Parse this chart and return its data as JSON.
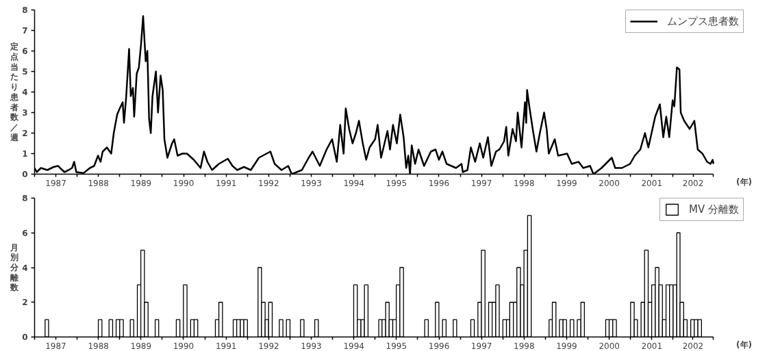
{
  "chart_data": [
    {
      "type": "line",
      "ylabel": "定点当たり患者数／週",
      "xlabel": "(年)",
      "xlim": [
        1987,
        2002.95
      ],
      "ylim": [
        0,
        8
      ],
      "yticks": [
        0,
        1,
        2,
        3,
        4,
        5,
        6,
        7,
        8
      ],
      "xticks": [
        {
          "value": 1987,
          "label": null
        },
        {
          "value": 1987.5,
          "label": "1987"
        },
        {
          "value": 1988,
          "label": null
        },
        {
          "value": 1988.5,
          "label": "1988"
        },
        {
          "value": 1989,
          "label": null
        },
        {
          "value": 1989.5,
          "label": "1989"
        },
        {
          "value": 1990,
          "label": null
        },
        {
          "value": 1990.5,
          "label": "1990"
        },
        {
          "value": 1991,
          "label": null
        },
        {
          "value": 1991.5,
          "label": "1991"
        },
        {
          "value": 1992,
          "label": null
        },
        {
          "value": 1992.5,
          "label": "1992"
        },
        {
          "value": 1993,
          "label": null
        },
        {
          "value": 1993.5,
          "label": "1993"
        },
        {
          "value": 1994,
          "label": null
        },
        {
          "value": 1994.5,
          "label": "1994"
        },
        {
          "value": 1995,
          "label": null
        },
        {
          "value": 1995.5,
          "label": "1995"
        },
        {
          "value": 1996,
          "label": null
        },
        {
          "value": 1996.5,
          "label": "1996"
        },
        {
          "value": 1997,
          "label": null
        },
        {
          "value": 1997.5,
          "label": "1997"
        },
        {
          "value": 1998,
          "label": null
        },
        {
          "value": 1998.5,
          "label": "1998"
        },
        {
          "value": 1999,
          "label": null
        },
        {
          "value": 1999.5,
          "label": "1999"
        },
        {
          "value": 2000,
          "label": null
        },
        {
          "value": 2000.5,
          "label": "2000"
        },
        {
          "value": 2001,
          "label": null
        },
        {
          "value": 2001.5,
          "label": "2001"
        },
        {
          "value": 2002,
          "label": null
        },
        {
          "value": 2002.47,
          "label": "2002"
        },
        {
          "value": 2002.95,
          "label": null
        }
      ],
      "grid": false,
      "legend": "top right",
      "marker": "none",
      "line_style": "solid",
      "series": [
        {
          "name": "ムンプス患者数",
          "color": "#000000",
          "x": [
            1987.0,
            1987.05,
            1987.15,
            1987.3,
            1987.45,
            1987.55,
            1987.7,
            1987.8,
            1987.88,
            1987.93,
            1987.98,
            1988.15,
            1988.3,
            1988.4,
            1988.49,
            1988.55,
            1988.6,
            1988.7,
            1988.8,
            1988.86,
            1988.94,
            1989.0,
            1989.07,
            1989.1,
            1989.15,
            1989.22,
            1989.26,
            1989.31,
            1989.34,
            1989.4,
            1989.45,
            1989.5,
            1989.55,
            1989.61,
            1989.65,
            1989.69,
            1989.73,
            1989.77,
            1989.85,
            1989.9,
            1989.96,
            1990.01,
            1990.05,
            1990.12,
            1990.23,
            1990.28,
            1990.36,
            1990.47,
            1990.58,
            1990.74,
            1990.9,
            1990.98,
            1991.06,
            1991.17,
            1991.33,
            1991.54,
            1991.65,
            1991.76,
            1991.92,
            1992.08,
            1992.27,
            1992.54,
            1992.64,
            1992.8,
            1992.96,
            1993.04,
            1993.28,
            1993.44,
            1993.53,
            1993.7,
            1993.86,
            1993.99,
            1994.1,
            1994.18,
            1994.26,
            1994.31,
            1994.39,
            1994.47,
            1994.55,
            1994.62,
            1994.71,
            1994.79,
            1994.87,
            1995.0,
            1995.06,
            1995.14,
            1995.29,
            1995.35,
            1995.42,
            1995.51,
            1995.59,
            1995.67,
            1995.73,
            1995.78,
            1995.82,
            1995.86,
            1995.94,
            1996.02,
            1996.15,
            1996.31,
            1996.42,
            1996.5,
            1996.58,
            1996.68,
            1996.9,
            1997.03,
            1997.06,
            1997.17,
            1997.25,
            1997.35,
            1997.46,
            1997.54,
            1997.65,
            1997.73,
            1997.84,
            1997.92,
            1998.03,
            1998.08,
            1998.13,
            1998.23,
            1998.31,
            1998.35,
            1998.44,
            1998.52,
            1998.55,
            1998.57,
            1998.63,
            1998.71,
            1998.79,
            1998.87,
            1998.97,
            1999.03,
            1999.08,
            1999.22,
            1999.3,
            1999.51,
            1999.62,
            1999.78,
            1999.89,
            2000.05,
            2000.13,
            2000.32,
            2000.56,
            2000.64,
            2000.8,
            2000.99,
            2001.1,
            2001.23,
            2001.34,
            2001.42,
            2001.58,
            2001.69,
            2001.77,
            2001.84,
            2001.91,
            2001.99,
            2002.03,
            2002.09,
            2002.15,
            2002.18,
            2002.26,
            2002.39,
            2002.5,
            2002.58,
            2002.69,
            2002.8,
            2002.88,
            2002.93,
            2002.95
          ],
          "values": [
            0.3,
            0.1,
            0.3,
            0.2,
            0.35,
            0.4,
            0.1,
            0.2,
            0.3,
            0.6,
            0.1,
            0.05,
            0.3,
            0.4,
            0.9,
            0.6,
            1.1,
            1.3,
            1.0,
            2.0,
            2.9,
            3.2,
            3.5,
            2.5,
            3.7,
            6.1,
            3.8,
            4.2,
            2.8,
            4.9,
            5.2,
            6.3,
            7.7,
            5.5,
            6.0,
            2.7,
            2.0,
            3.8,
            5.0,
            3.0,
            4.8,
            4.1,
            1.7,
            0.8,
            1.5,
            1.7,
            0.9,
            1.0,
            1.0,
            0.7,
            0.3,
            1.1,
            0.6,
            0.2,
            0.5,
            0.75,
            0.4,
            0.2,
            0.35,
            0.2,
            0.8,
            1.1,
            0.5,
            0.2,
            0.4,
            0.0,
            0.2,
            0.8,
            1.1,
            0.4,
            1.2,
            1.7,
            0.6,
            2.4,
            1.0,
            3.2,
            2.2,
            1.5,
            2.0,
            2.6,
            1.5,
            0.7,
            1.3,
            1.7,
            2.4,
            0.8,
            2.1,
            1.2,
            2.4,
            1.5,
            2.9,
            1.8,
            0.3,
            0.9,
            0.0,
            1.4,
            0.5,
            1.2,
            0.4,
            1.1,
            1.2,
            0.7,
            1.1,
            0.5,
            0.3,
            0.5,
            0.1,
            0.2,
            1.3,
            0.6,
            1.5,
            0.8,
            1.8,
            0.4,
            1.1,
            1.2,
            1.6,
            2.3,
            0.9,
            2.2,
            1.6,
            3.0,
            1.3,
            3.5,
            2.5,
            4.1,
            3.2,
            2.1,
            1.1,
            2.0,
            3.0,
            2.2,
            1.0,
            1.7,
            0.9,
            1.0,
            0.5,
            0.6,
            0.3,
            0.4,
            0.0,
            0.3,
            0.8,
            0.3,
            0.3,
            0.5,
            0.9,
            1.2,
            2.0,
            1.3,
            2.8,
            3.4,
            1.8,
            2.8,
            1.8,
            3.6,
            3.3,
            5.2,
            5.1,
            3.0,
            2.6,
            2.2,
            2.6,
            1.2,
            1.0,
            0.6,
            0.5,
            0.7,
            0.5
          ]
        }
      ]
    },
    {
      "type": "bar",
      "ylabel": "月別分離数",
      "xlabel": "(年)",
      "xlim": [
        "1987-01-01",
        "2002-12-13"
      ],
      "ylim": [
        0,
        8
      ],
      "yticks": [
        0,
        2,
        4,
        6,
        8
      ],
      "xticks": [
        {
          "value": "1987-01-01",
          "label": null
        },
        {
          "value": "1987-07-02",
          "label": "1987"
        },
        {
          "value": "1988-01-01",
          "label": null
        },
        {
          "value": "1988-07-02",
          "label": "1988"
        },
        {
          "value": "1989-01-01",
          "label": null
        },
        {
          "value": "1989-07-02",
          "label": "1989"
        },
        {
          "value": "1990-01-01",
          "label": null
        },
        {
          "value": "1990-07-02",
          "label": "1990"
        },
        {
          "value": "1991-01-01",
          "label": null
        },
        {
          "value": "1991-07-02",
          "label": "1991"
        },
        {
          "value": "1992-01-01",
          "label": null
        },
        {
          "value": "1992-07-02",
          "label": "1992"
        },
        {
          "value": "1993-01-01",
          "label": null
        },
        {
          "value": "1993-07-02",
          "label": "1993"
        },
        {
          "value": "1994-01-01",
          "label": null
        },
        {
          "value": "1994-07-02",
          "label": "1994"
        },
        {
          "value": "1995-01-01",
          "label": null
        },
        {
          "value": "1995-07-02",
          "label": "1995"
        },
        {
          "value": "1996-01-01",
          "label": null
        },
        {
          "value": "1996-07-02",
          "label": "1996"
        },
        {
          "value": "1997-01-01",
          "label": null
        },
        {
          "value": "1997-07-02",
          "label": "1997"
        },
        {
          "value": "1998-01-01",
          "label": null
        },
        {
          "value": "1998-07-02",
          "label": "1998"
        },
        {
          "value": "1999-01-01",
          "label": null
        },
        {
          "value": "1999-07-02",
          "label": "1999"
        },
        {
          "value": "2000-01-01",
          "label": null
        },
        {
          "value": "2000-07-02",
          "label": "2000"
        },
        {
          "value": "2001-01-01",
          "label": null
        },
        {
          "value": "2001-07-02",
          "label": "2001"
        },
        {
          "value": "2002-01-01",
          "label": null
        },
        {
          "value": "2002-06-20",
          "label": "2002"
        },
        {
          "value": "2002-12-13",
          "label": null
        }
      ],
      "grid": false,
      "legend": "top right",
      "series": [
        {
          "name": "MV 分離数",
          "color": "#ffffff",
          "x": [
            "1987-04",
            "1988-07",
            "1988-10",
            "1988-12",
            "1989-01",
            "1989-04",
            "1989-06",
            "1989-07",
            "1989-08",
            "1989-11",
            "1990-05",
            "1990-07",
            "1990-09",
            "1990-10",
            "1991-04",
            "1991-05",
            "1991-09",
            "1991-10",
            "1991-11",
            "1991-12",
            "1992-04",
            "1992-05",
            "1992-06",
            "1992-07",
            "1992-10",
            "1992-12",
            "1993-04",
            "1993-08",
            "1994-07",
            "1994-08",
            "1994-09",
            "1994-10",
            "1995-02",
            "1995-03",
            "1995-04",
            "1995-05",
            "1995-06",
            "1995-07",
            "1995-08",
            "1996-03",
            "1996-06",
            "1996-08",
            "1996-11",
            "1997-04",
            "1997-06",
            "1997-07",
            "1997-09",
            "1997-10",
            "1997-11",
            "1998-01",
            "1998-02",
            "1998-03",
            "1998-04",
            "1998-05",
            "1998-06",
            "1998-07",
            "1998-08",
            "1999-02",
            "1999-03",
            "1999-05",
            "1999-06",
            "1999-08",
            "1999-10",
            "1999-11",
            "2000-06",
            "2000-07",
            "2000-08",
            "2001-01",
            "2001-02",
            "2001-04",
            "2001-05",
            "2001-06",
            "2001-07",
            "2001-08",
            "2001-09",
            "2001-10",
            "2001-11",
            "2001-12",
            "2002-01",
            "2002-02",
            "2002-03",
            "2002-04",
            "2002-06",
            "2002-07",
            "2002-08"
          ],
          "values": [
            1,
            1,
            1,
            1,
            1,
            1,
            3,
            5,
            2,
            1,
            1,
            3,
            1,
            1,
            1,
            2,
            1,
            1,
            1,
            1,
            4,
            2,
            1,
            2,
            1,
            1,
            1,
            1,
            3,
            1,
            1,
            3,
            1,
            1,
            2,
            1,
            1,
            3,
            4,
            1,
            2,
            1,
            1,
            1,
            2,
            5,
            2,
            2,
            3,
            1,
            1,
            2,
            2,
            4,
            3,
            5,
            7,
            1,
            2,
            1,
            1,
            1,
            1,
            2,
            1,
            1,
            1,
            2,
            1,
            2,
            5,
            2,
            3,
            4,
            3,
            1,
            3,
            3,
            3,
            6,
            2,
            1,
            1,
            1,
            1
          ]
        }
      ]
    }
  ]
}
